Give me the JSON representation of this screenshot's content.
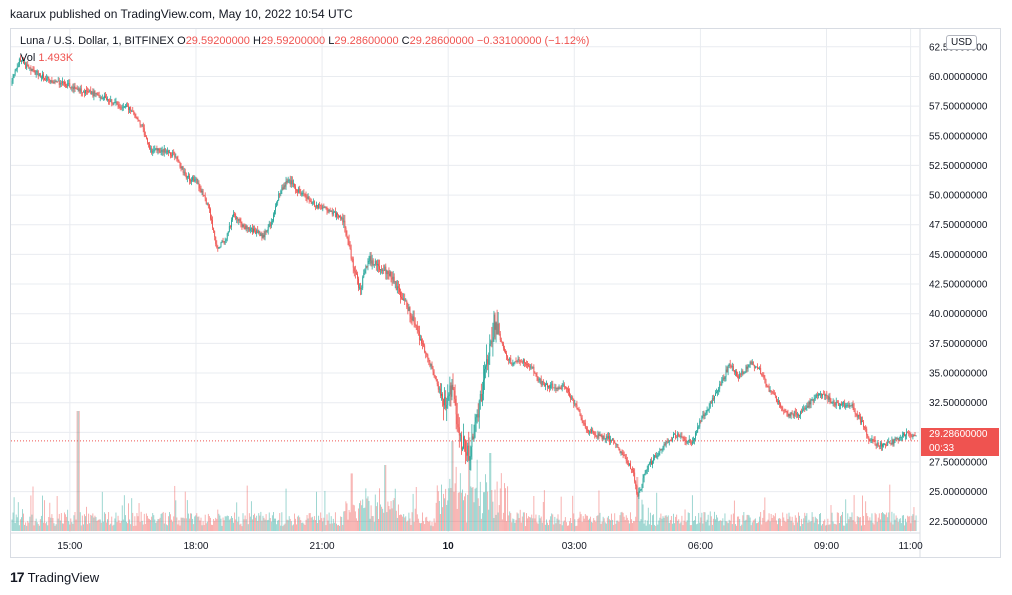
{
  "caption": "kaarux published on TradingView.com, May 10, 2022 10:54 UTC",
  "legend": {
    "symbol": "Luna / U.S. Dollar, 1, BITFINEX",
    "open_label": "O",
    "open": "29.59200000",
    "high_label": "H",
    "high": "29.59200000",
    "low_label": "L",
    "low": "29.28600000",
    "close_label": "C",
    "close": "29.28600000",
    "change": "−0.33100000 (−1.12%)",
    "vol_label": "Vol",
    "vol": "1.493K"
  },
  "currency": "USD",
  "price_tag": {
    "price": "29.28600000",
    "countdown": "00:33"
  },
  "footer": {
    "logo": "17",
    "brand": "TradingView"
  },
  "colors": {
    "up": "#26a69a",
    "down": "#ef5350",
    "grid": "#e9ecf0"
  },
  "chart_data": {
    "type": "candlestick",
    "y_ticks": [
      "62.50000000",
      "60.00000000",
      "57.50000000",
      "55.00000000",
      "52.50000000",
      "50.00000000",
      "47.50000000",
      "45.00000000",
      "42.50000000",
      "40.00000000",
      "37.50000000",
      "35.00000000",
      "32.50000000",
      "30.00000000",
      "27.50000000",
      "25.00000000",
      "22.50000000"
    ],
    "y_tick_values": [
      62.5,
      60,
      57.5,
      55,
      52.5,
      50,
      47.5,
      45,
      42.5,
      40,
      37.5,
      35,
      32.5,
      30,
      27.5,
      25,
      22.5
    ],
    "x_ticks": [
      "15:00",
      "18:00",
      "21:00",
      "10",
      "03:00",
      "06:00",
      "09:00",
      "11:00"
    ],
    "x_tick_hours": [
      15,
      18,
      21,
      24,
      27,
      30,
      33,
      35
    ],
    "x_range_hours": [
      13.6,
      35.2
    ],
    "y_range": [
      21.6,
      64.0
    ],
    "last_price": 29.286,
    "price_path": [
      [
        13.6,
        59.3
      ],
      [
        13.8,
        61.3
      ],
      [
        14.1,
        60.5
      ],
      [
        14.5,
        59.7
      ],
      [
        15.0,
        59.2
      ],
      [
        15.3,
        58.8
      ],
      [
        15.7,
        58.4
      ],
      [
        16.0,
        57.8
      ],
      [
        16.4,
        57.3
      ],
      [
        16.7,
        56.0
      ],
      [
        16.9,
        53.8
      ],
      [
        17.2,
        53.8
      ],
      [
        17.5,
        53.3
      ],
      [
        17.8,
        51.4
      ],
      [
        18.0,
        51.3
      ],
      [
        18.3,
        49.0
      ],
      [
        18.5,
        45.5
      ],
      [
        18.7,
        46.2
      ],
      [
        18.9,
        48.3
      ],
      [
        19.1,
        47.4
      ],
      [
        19.4,
        47.0
      ],
      [
        19.6,
        46.5
      ],
      [
        19.8,
        47.8
      ],
      [
        20.0,
        50.3
      ],
      [
        20.2,
        51.3
      ],
      [
        20.5,
        50.1
      ],
      [
        20.8,
        49.3
      ],
      [
        21.2,
        48.6
      ],
      [
        21.5,
        47.9
      ],
      [
        21.9,
        41.8
      ],
      [
        22.1,
        44.8
      ],
      [
        22.3,
        44.0
      ],
      [
        22.6,
        43.5
      ],
      [
        22.9,
        41.4
      ],
      [
        23.2,
        39.3
      ],
      [
        23.4,
        37.2
      ],
      [
        23.7,
        34.6
      ],
      [
        23.9,
        32.2
      ],
      [
        24.1,
        33.6
      ],
      [
        24.3,
        29.4
      ],
      [
        24.5,
        27.8
      ],
      [
        24.7,
        31.6
      ],
      [
        24.9,
        35.2
      ],
      [
        25.1,
        39.4
      ],
      [
        25.3,
        37.2
      ],
      [
        25.5,
        35.8
      ],
      [
        25.7,
        36.2
      ],
      [
        26.0,
        35.4
      ],
      [
        26.2,
        34.2
      ],
      [
        26.4,
        33.9
      ],
      [
        26.8,
        33.8
      ],
      [
        27.1,
        31.7
      ],
      [
        27.3,
        30.3
      ],
      [
        27.6,
        29.6
      ],
      [
        27.9,
        29.4
      ],
      [
        28.2,
        27.8
      ],
      [
        28.4,
        26.8
      ],
      [
        28.5,
        24.4
      ],
      [
        28.7,
        26.8
      ],
      [
        29.1,
        28.8
      ],
      [
        29.4,
        29.8
      ],
      [
        29.8,
        29.1
      ],
      [
        30.0,
        31.0
      ],
      [
        30.3,
        32.8
      ],
      [
        30.5,
        34.2
      ],
      [
        30.7,
        35.8
      ],
      [
        30.9,
        34.6
      ],
      [
        31.2,
        35.9
      ],
      [
        31.4,
        35.3
      ],
      [
        31.6,
        33.8
      ],
      [
        31.9,
        32.3
      ],
      [
        32.1,
        31.5
      ],
      [
        32.4,
        31.6
      ],
      [
        32.7,
        32.9
      ],
      [
        32.9,
        33.2
      ],
      [
        33.2,
        32.4
      ],
      [
        33.6,
        32.2
      ],
      [
        33.9,
        30.5
      ],
      [
        34.0,
        29.3
      ],
      [
        34.3,
        28.9
      ],
      [
        34.6,
        29.2
      ],
      [
        34.9,
        29.9
      ],
      [
        35.1,
        29.7
      ],
      [
        35.2,
        29.3
      ]
    ],
    "volume_spikes": [
      {
        "hour": 15.2,
        "volume": 10.0
      },
      {
        "hour": 24.1,
        "volume": 7.5
      },
      {
        "hour": 24.5,
        "volume": 7.8
      },
      {
        "hour": 25.0,
        "volume": 6.5
      },
      {
        "hour": 22.5,
        "volume": 5.5
      },
      {
        "hour": 21.7,
        "volume": 4.8
      },
      {
        "hour": 28.5,
        "volume": 4.5
      }
    ]
  }
}
